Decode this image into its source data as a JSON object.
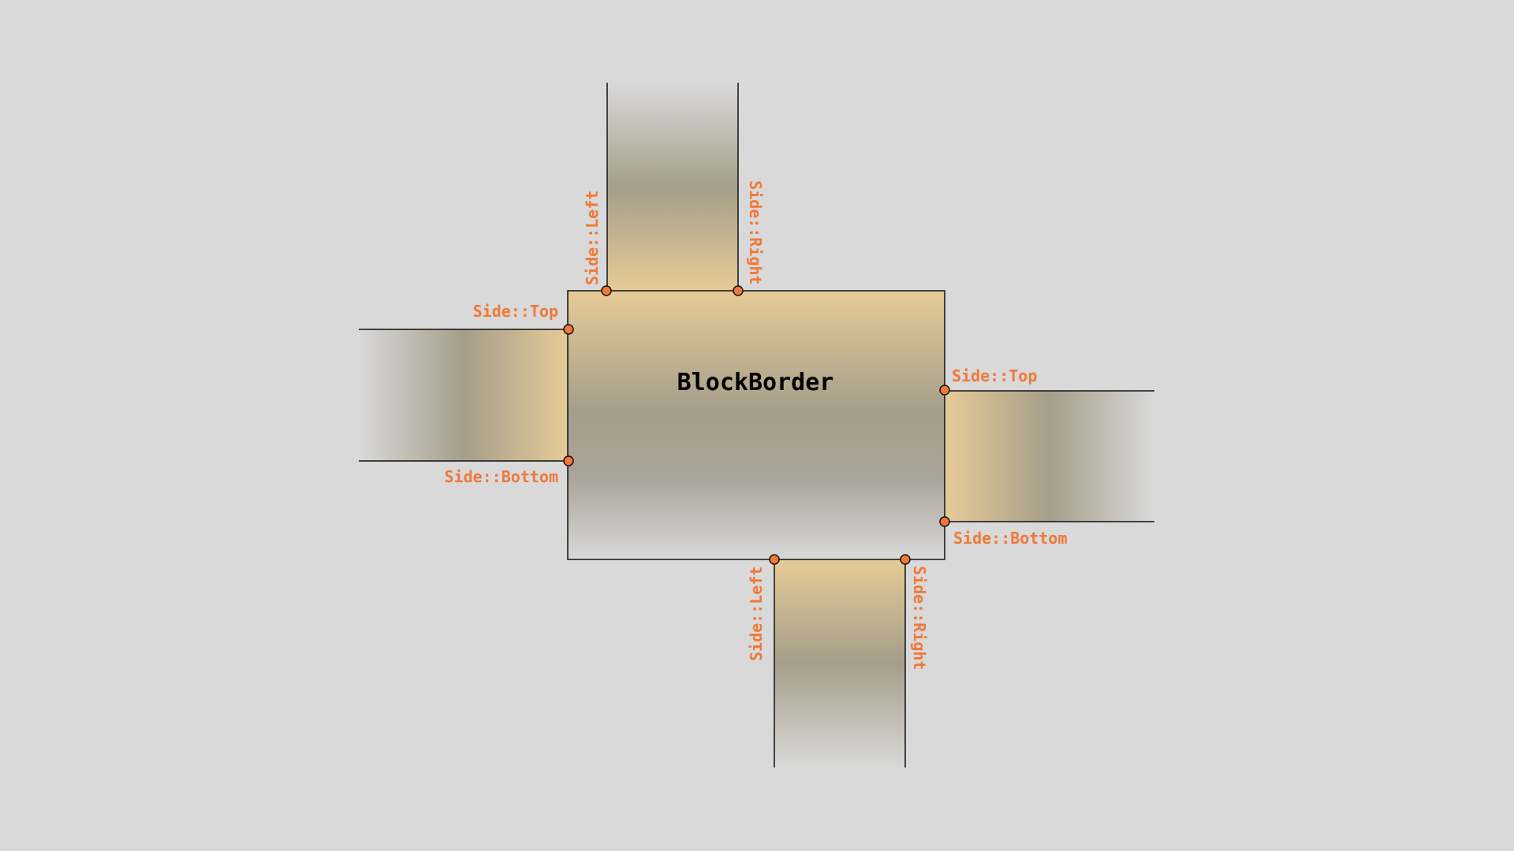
{
  "colors": {
    "background": "#d9d9d9",
    "fill_warm": "#e6cb97",
    "fill_mid": "#a59e8a",
    "accent": "#f07838",
    "outline": "#111111"
  },
  "block": {
    "title": "BlockBorder"
  },
  "connectors": {
    "top": {
      "left_label": "Side::Left",
      "right_label": "Side::Right"
    },
    "left": {
      "top_label": "Side::Top",
      "bottom_label": "Side::Bottom"
    },
    "right": {
      "top_label": "Side::Top",
      "bottom_label": "Side::Bottom"
    },
    "bottom": {
      "left_label": "Side::Left",
      "right_label": "Side::Right"
    }
  }
}
